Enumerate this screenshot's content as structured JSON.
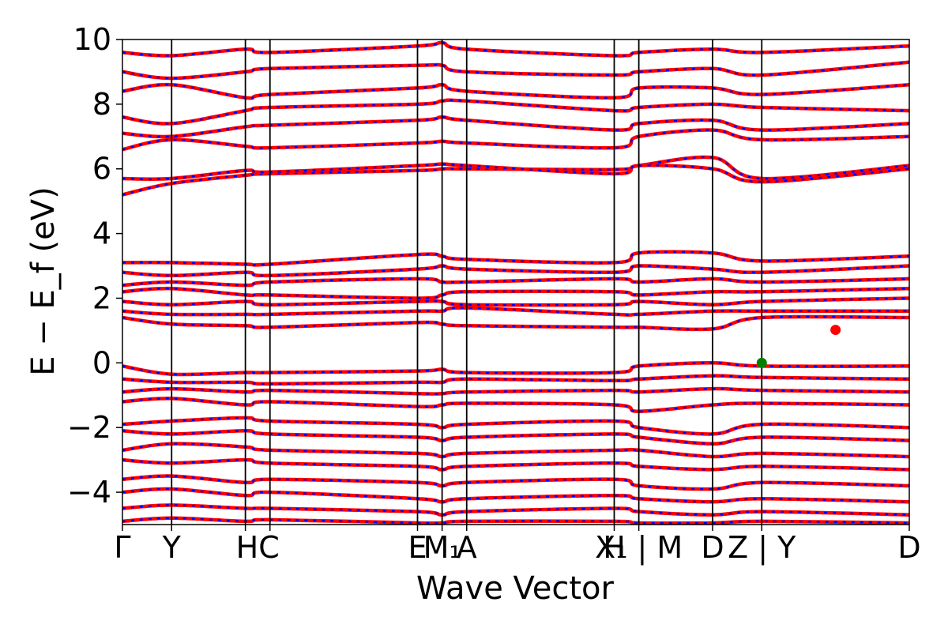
{
  "chart_data": {
    "type": "line",
    "title": "",
    "xlabel": "Wave Vector",
    "ylabel": "E − E_f (eV)",
    "ylim": [
      -5,
      10
    ],
    "yticks": [
      -4,
      -2,
      0,
      2,
      4,
      6,
      8,
      10
    ],
    "ytick_labels": [
      "−4",
      "−2",
      "0",
      "2",
      "4",
      "6",
      "8",
      "10"
    ],
    "xlim": [
      0,
      16
    ],
    "kpoint_positions": [
      0,
      1,
      2.5,
      3,
      6,
      6.5,
      7,
      10,
      10.5,
      12,
      13,
      16
    ],
    "kpoint_labels": [
      "Γ",
      "Y",
      "HC",
      "E",
      "M₁",
      "A",
      "H",
      "X₁ | M",
      "D",
      "Z | Y",
      "D"
    ],
    "kpoint_label_positions": [
      0,
      1,
      2.75,
      6,
      6.5,
      7,
      10,
      10.5,
      12,
      13,
      16
    ],
    "band_colors": [
      "#ff0000",
      "#0000ff"
    ],
    "legend": "none",
    "grid": false,
    "markers": [
      {
        "name": "VBM",
        "x": 13.0,
        "y": 0.0,
        "color": "#008000"
      },
      {
        "name": "CBM",
        "x": 14.5,
        "y": 1.02,
        "color": "#ff0000"
      }
    ],
    "series": [
      {
        "values": [
          5.2,
          5.55,
          5.8,
          5.85,
          5.95,
          6.0,
          6.0,
          5.98,
          6.1,
          6.35,
          5.7,
          6.1
        ]
      },
      {
        "values": [
          5.7,
          5.7,
          5.95,
          5.9,
          6.1,
          6.15,
          6.1,
          5.85,
          6.1,
          6.0,
          5.6,
          6.0
        ]
      },
      {
        "values": [
          6.6,
          6.9,
          6.7,
          6.65,
          6.8,
          6.85,
          6.8,
          6.65,
          7.0,
          7.2,
          6.9,
          7.0
        ]
      },
      {
        "values": [
          7.1,
          7.0,
          7.3,
          7.35,
          7.5,
          7.6,
          7.5,
          7.2,
          7.4,
          7.5,
          7.2,
          7.4
        ]
      },
      {
        "values": [
          7.6,
          7.4,
          7.8,
          7.9,
          8.0,
          8.1,
          8.1,
          7.8,
          7.9,
          8.0,
          7.9,
          7.8
        ]
      },
      {
        "values": [
          8.4,
          8.6,
          8.2,
          8.3,
          8.5,
          8.6,
          8.4,
          8.2,
          8.5,
          8.5,
          8.3,
          8.6
        ]
      },
      {
        "values": [
          9.0,
          8.8,
          9.0,
          9.1,
          9.2,
          9.2,
          9.0,
          8.9,
          9.0,
          9.1,
          8.9,
          9.3
        ]
      },
      {
        "values": [
          9.6,
          9.5,
          9.7,
          9.6,
          9.8,
          9.9,
          9.7,
          9.5,
          9.6,
          9.7,
          9.6,
          9.8
        ]
      },
      {
        "values": [
          1.4,
          1.2,
          1.15,
          1.1,
          1.25,
          1.2,
          1.15,
          1.1,
          1.1,
          1.05,
          1.4,
          1.4
        ]
      },
      {
        "values": [
          1.6,
          1.5,
          1.5,
          1.5,
          1.6,
          1.6,
          1.7,
          1.5,
          1.5,
          1.6,
          1.6,
          1.6
        ]
      },
      {
        "values": [
          1.9,
          1.8,
          1.9,
          1.8,
          1.9,
          1.9,
          1.8,
          1.8,
          1.9,
          1.8,
          1.9,
          2.0
        ]
      },
      {
        "values": [
          2.2,
          2.3,
          2.1,
          2.1,
          2.0,
          2.1,
          2.2,
          2.2,
          2.1,
          2.2,
          2.2,
          2.3
        ]
      },
      {
        "values": [
          2.4,
          2.5,
          2.4,
          2.5,
          2.6,
          2.5,
          2.5,
          2.6,
          2.5,
          2.6,
          2.5,
          2.6
        ]
      },
      {
        "values": [
          2.8,
          2.7,
          2.8,
          2.7,
          2.9,
          3.0,
          2.9,
          2.8,
          3.0,
          2.9,
          2.8,
          3.0
        ]
      },
      {
        "values": [
          3.1,
          3.1,
          3.05,
          3.05,
          3.35,
          3.3,
          3.2,
          3.1,
          3.4,
          3.4,
          3.15,
          3.3
        ]
      },
      {
        "values": [
          -0.1,
          -0.35,
          -0.3,
          -0.3,
          -0.25,
          -0.2,
          -0.3,
          -0.3,
          -0.1,
          0.0,
          -0.1,
          -0.1
        ]
      },
      {
        "values": [
          -0.5,
          -0.6,
          -0.6,
          -0.65,
          -0.6,
          -0.6,
          -0.5,
          -0.55,
          -0.5,
          -0.4,
          -0.45,
          -0.5
        ]
      },
      {
        "values": [
          -0.9,
          -0.8,
          -0.9,
          -0.85,
          -0.95,
          -0.95,
          -0.9,
          -0.85,
          -0.9,
          -0.8,
          -0.85,
          -0.9
        ]
      },
      {
        "values": [
          -1.2,
          -1.1,
          -1.3,
          -1.2,
          -1.35,
          -1.3,
          -1.25,
          -1.3,
          -1.5,
          -1.3,
          -1.25,
          -1.3
        ]
      },
      {
        "values": [
          -1.9,
          -1.8,
          -1.7,
          -1.8,
          -1.9,
          -2.0,
          -1.9,
          -1.8,
          -2.0,
          -2.2,
          -1.9,
          -2.0
        ]
      },
      {
        "values": [
          -2.1,
          -2.2,
          -2.1,
          -2.2,
          -2.3,
          -2.4,
          -2.3,
          -2.2,
          -2.3,
          -2.5,
          -2.3,
          -2.4
        ]
      },
      {
        "values": [
          -2.7,
          -2.5,
          -2.6,
          -2.7,
          -2.8,
          -2.9,
          -2.8,
          -2.7,
          -2.7,
          -2.9,
          -2.8,
          -2.9
        ]
      },
      {
        "values": [
          -3.0,
          -3.1,
          -3.0,
          -3.1,
          -3.2,
          -3.3,
          -3.2,
          -3.1,
          -3.2,
          -3.3,
          -3.2,
          -3.3
        ]
      },
      {
        "values": [
          -3.6,
          -3.5,
          -3.7,
          -3.6,
          -3.7,
          -3.8,
          -3.7,
          -3.6,
          -3.8,
          -3.9,
          -3.7,
          -3.8
        ]
      },
      {
        "values": [
          -4.0,
          -3.9,
          -4.1,
          -4.0,
          -4.2,
          -4.3,
          -4.2,
          -4.1,
          -4.2,
          -4.3,
          -4.2,
          -4.3
        ]
      },
      {
        "values": [
          -4.5,
          -4.4,
          -4.5,
          -4.5,
          -4.6,
          -4.7,
          -4.6,
          -4.5,
          -4.6,
          -4.7,
          -4.6,
          -4.7
        ]
      },
      {
        "values": [
          -4.9,
          -4.8,
          -4.9,
          -4.85,
          -4.95,
          -4.95,
          -4.9,
          -4.9,
          -4.95,
          -4.95,
          -4.9,
          -4.95
        ]
      }
    ]
  }
}
